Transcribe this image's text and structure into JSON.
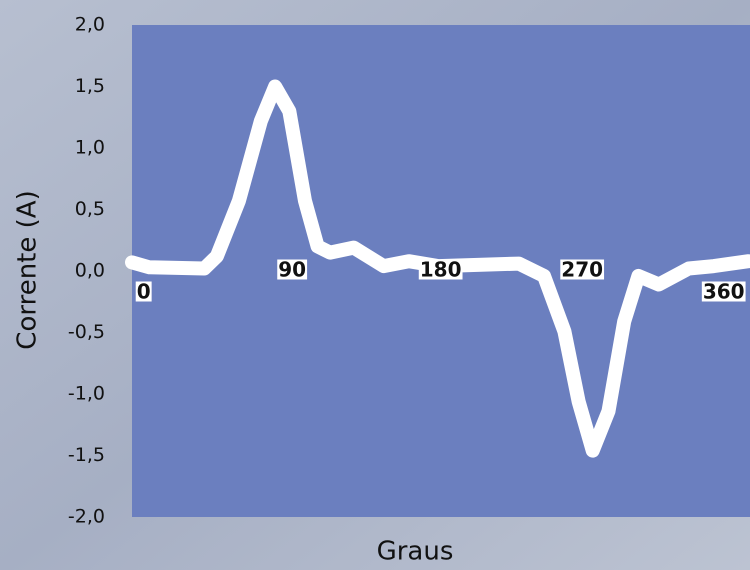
{
  "chart_data": {
    "type": "line",
    "xlabel": "Graus",
    "ylabel": "Corrente (A)",
    "x": [
      -3,
      8,
      43,
      51,
      65,
      79,
      88,
      97,
      107,
      115,
      123,
      138,
      157,
      173,
      192,
      243,
      259,
      272,
      281,
      290,
      300,
      310,
      319,
      332,
      351,
      367,
      389
    ],
    "series": [
      {
        "color": "#ffffff",
        "values": [
          0.07,
          0.03,
          0.02,
          0.12,
          0.57,
          1.22,
          1.5,
          1.3,
          0.57,
          0.2,
          0.15,
          0.19,
          0.04,
          0.08,
          0.04,
          0.06,
          -0.04,
          -0.49,
          -1.06,
          -1.46,
          -1.14,
          -0.41,
          -0.04,
          -0.11,
          0.02,
          0.04,
          0.08
        ]
      }
    ],
    "xlim": [
      -3,
      390
    ],
    "xticks": [
      0,
      90,
      180,
      270,
      360
    ],
    "ylim": [
      -2,
      2
    ],
    "yticks": [
      {
        "value": 2,
        "label": "2,0"
      },
      {
        "value": 1.5,
        "label": "1,5"
      },
      {
        "value": 1,
        "label": "1,0"
      },
      {
        "value": 0.5,
        "label": "0,5"
      },
      {
        "value": 0,
        "label": "0,0"
      },
      {
        "value": -0.5,
        "label": "-0,5"
      },
      {
        "value": -1,
        "label": "-1,0"
      },
      {
        "value": -1.5,
        "label": "-1,5"
      },
      {
        "value": -2,
        "label": "-2,0"
      }
    ]
  }
}
